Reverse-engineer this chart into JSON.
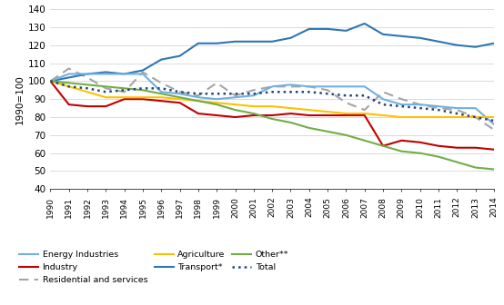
{
  "years": [
    1990,
    1991,
    1992,
    1993,
    1994,
    1995,
    1996,
    1997,
    1998,
    1999,
    2000,
    2001,
    2002,
    2003,
    2004,
    2005,
    2006,
    2007,
    2008,
    2009,
    2010,
    2011,
    2012,
    2013,
    2014
  ],
  "energy_industries": [
    100,
    104,
    104,
    104,
    104,
    104,
    94,
    93,
    91,
    90,
    91,
    92,
    97,
    98,
    97,
    97,
    97,
    97,
    90,
    87,
    87,
    86,
    85,
    85,
    76
  ],
  "industry": [
    100,
    87,
    86,
    86,
    90,
    90,
    89,
    88,
    82,
    81,
    80,
    81,
    81,
    82,
    81,
    81,
    81,
    81,
    64,
    67,
    66,
    64,
    63,
    63,
    62
  ],
  "residential_services": [
    100,
    107,
    102,
    96,
    94,
    105,
    99,
    94,
    92,
    99,
    92,
    95,
    97,
    97,
    97,
    95,
    88,
    84,
    94,
    90,
    87,
    85,
    84,
    80,
    73
  ],
  "agriculture": [
    100,
    97,
    94,
    91,
    91,
    91,
    91,
    90,
    89,
    88,
    87,
    86,
    86,
    85,
    84,
    83,
    82,
    82,
    81,
    80,
    80,
    80,
    80,
    80,
    80
  ],
  "transport": [
    100,
    102,
    104,
    105,
    104,
    106,
    112,
    114,
    121,
    121,
    122,
    122,
    122,
    124,
    129,
    129,
    128,
    132,
    126,
    125,
    124,
    122,
    120,
    119,
    121
  ],
  "other": [
    100,
    99,
    98,
    97,
    96,
    95,
    93,
    91,
    89,
    87,
    84,
    82,
    79,
    77,
    74,
    72,
    70,
    67,
    64,
    61,
    60,
    58,
    55,
    52,
    51
  ],
  "total": [
    100,
    97,
    96,
    94,
    95,
    96,
    96,
    94,
    93,
    93,
    93,
    93,
    94,
    94,
    94,
    93,
    92,
    92,
    87,
    86,
    85,
    84,
    82,
    80,
    78
  ],
  "energy_color": "#70b0e0",
  "industry_color": "#c00000",
  "residential_color": "#a5a5a5",
  "agriculture_color": "#ffc000",
  "transport_color": "#2e75b6",
  "other_color": "#70ad47",
  "total_color": "#264478",
  "ylabel": "1990=100",
  "ylim": [
    40,
    140
  ],
  "yticks": [
    40,
    50,
    60,
    70,
    80,
    90,
    100,
    110,
    120,
    130,
    140
  ]
}
